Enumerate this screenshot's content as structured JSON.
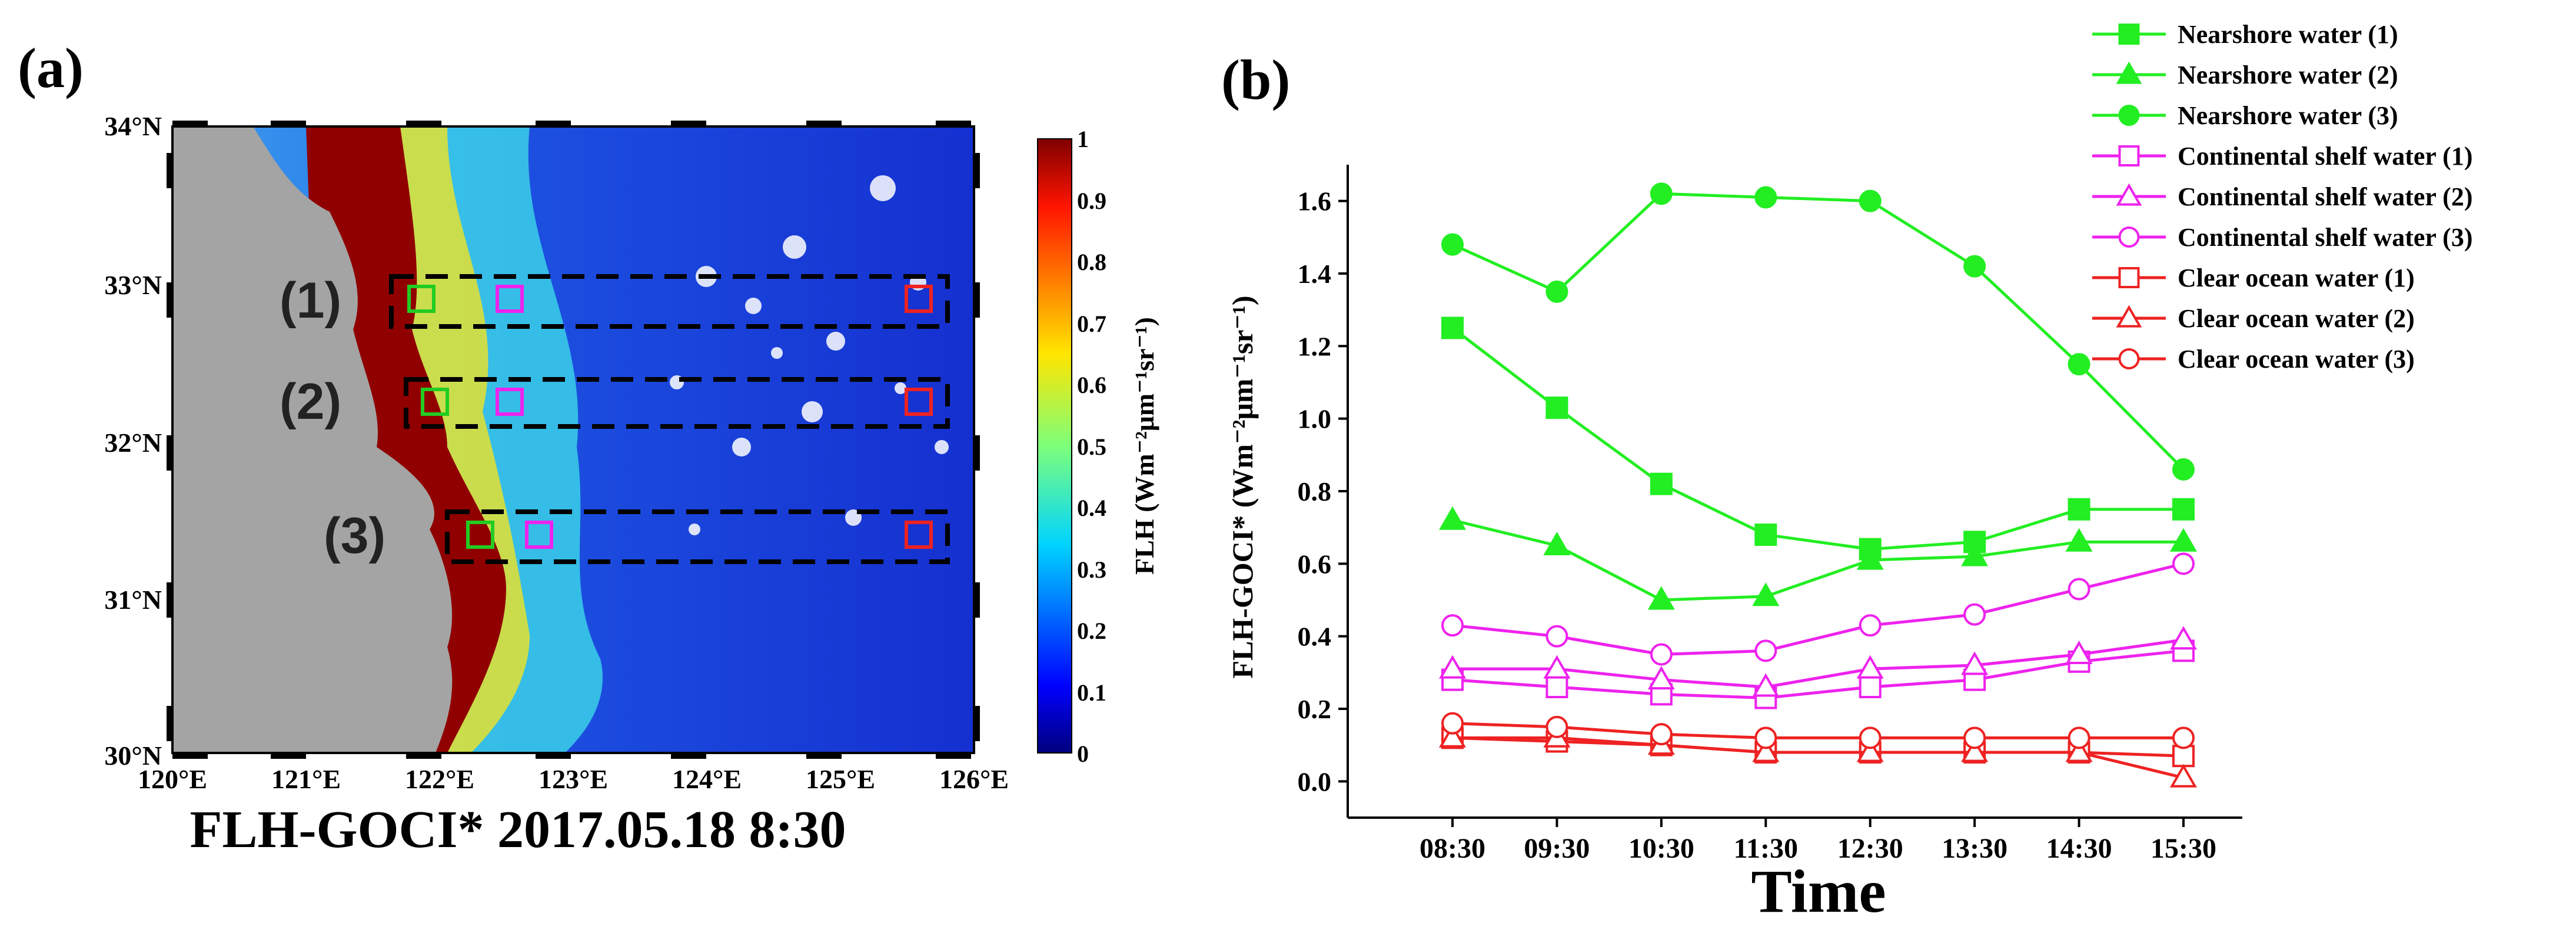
{
  "panel_a": {
    "label": "(a)",
    "caption": "FLH-GOCI* 2017.05.18 8:30",
    "lat_labels": [
      "34°N",
      "33°N",
      "32°N",
      "31°N",
      "30°N"
    ],
    "lon_labels": [
      "120°E",
      "121°E",
      "122°E",
      "123°E",
      "124°E",
      "125°E",
      "126°E"
    ],
    "regions": [
      "(1)",
      "(2)",
      "(3)"
    ],
    "colorbar": {
      "title": "FLH (Wm⁻²μm⁻¹sr⁻¹)",
      "ticks": [
        "1",
        "0.9",
        "0.8",
        "0.7",
        "0.6",
        "0.5",
        "0.4",
        "0.3",
        "0.2",
        "0.1",
        "0"
      ]
    },
    "colors": {
      "land": "#a4a4a4",
      "ocean_low": "#1030d8",
      "ocean_mid": "#40b8f0",
      "bloom_high": "#900000",
      "nearshore_box": "#22cc22",
      "shelf_box": "#ee22ee",
      "ocean_box": "#ee2222"
    }
  },
  "panel_b": {
    "label": "(b)"
  },
  "chart_data": {
    "type": "line",
    "title": "",
    "xlabel": "Time",
    "ylabel": "FLH-GOCI* (Wm⁻²μm⁻¹sr⁻¹)",
    "categories": [
      "08:30",
      "09:30",
      "10:30",
      "11:30",
      "12:30",
      "13:30",
      "14:30",
      "15:30"
    ],
    "ylim": [
      -0.1,
      1.7
    ],
    "yticks": [
      "0.0",
      "0.2",
      "0.4",
      "0.6",
      "0.8",
      "1.0",
      "1.2",
      "1.4",
      "1.6"
    ],
    "legend_position": "top-right",
    "series": [
      {
        "name": "Nearshore water (1)",
        "color": "#22ee22",
        "marker": "square",
        "filled": true,
        "values": [
          1.25,
          1.03,
          0.82,
          0.68,
          0.64,
          0.66,
          0.75,
          0.75
        ]
      },
      {
        "name": "Nearshore water (2)",
        "color": "#22ee22",
        "marker": "triangle",
        "filled": true,
        "values": [
          0.72,
          0.65,
          0.5,
          0.51,
          0.61,
          0.62,
          0.66,
          0.66
        ]
      },
      {
        "name": "Nearshore water (3)",
        "color": "#22ee22",
        "marker": "circle",
        "filled": true,
        "values": [
          1.48,
          1.35,
          1.62,
          1.61,
          1.6,
          1.42,
          1.15,
          0.86
        ]
      },
      {
        "name": "Continental shelf water (1)",
        "color": "#ee22ee",
        "marker": "square",
        "filled": false,
        "values": [
          0.28,
          0.26,
          0.24,
          0.23,
          0.26,
          0.28,
          0.33,
          0.36
        ]
      },
      {
        "name": "Continental shelf water (2)",
        "color": "#ee22ee",
        "marker": "triangle",
        "filled": false,
        "values": [
          0.31,
          0.31,
          0.28,
          0.26,
          0.31,
          0.32,
          0.35,
          0.39
        ]
      },
      {
        "name": "Continental shelf water (3)",
        "color": "#ee22ee",
        "marker": "circle",
        "filled": false,
        "values": [
          0.43,
          0.4,
          0.35,
          0.36,
          0.43,
          0.46,
          0.53,
          0.6
        ]
      },
      {
        "name": "Clear ocean water (1)",
        "color": "#ee2222",
        "marker": "square",
        "filled": false,
        "values": [
          0.12,
          0.11,
          0.1,
          0.08,
          0.08,
          0.08,
          0.08,
          0.07
        ]
      },
      {
        "name": "Clear ocean water (2)",
        "color": "#ee2222",
        "marker": "triangle",
        "filled": false,
        "values": [
          0.12,
          0.12,
          0.1,
          0.08,
          0.08,
          0.08,
          0.08,
          0.01
        ]
      },
      {
        "name": "Clear ocean water (3)",
        "color": "#ee2222",
        "marker": "circle",
        "filled": false,
        "values": [
          0.16,
          0.15,
          0.13,
          0.12,
          0.12,
          0.12,
          0.12,
          0.12
        ]
      }
    ]
  }
}
